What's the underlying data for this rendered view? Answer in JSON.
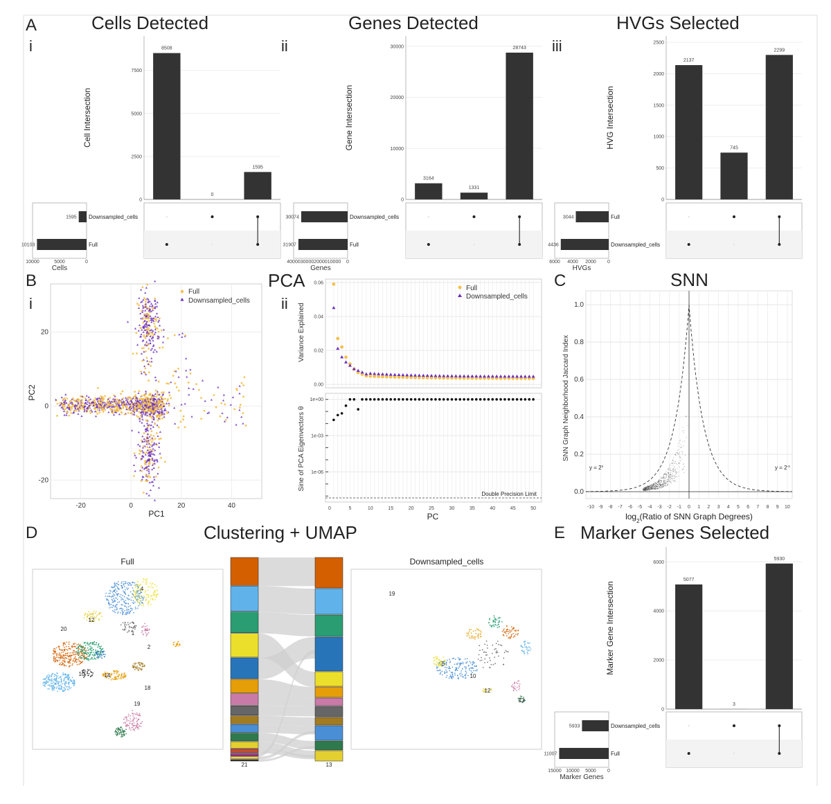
{
  "panels": {
    "A": {
      "label": "A",
      "title_i": "Cells Detected",
      "title_ii": "Genes Detected",
      "title_iii": "HVGs Selected",
      "sub_i": "i",
      "sub_ii": "ii",
      "sub_iii": "iii"
    },
    "B": {
      "label": "B",
      "sub_i": "i",
      "sub_ii": "ii",
      "title_pca": "PCA"
    },
    "C": {
      "label": "C",
      "title": "SNN"
    },
    "D": {
      "label": "D",
      "title": "Clustering + UMAP",
      "left_title": "Full",
      "right_title": "Downsampled_cells"
    },
    "E": {
      "label": "E",
      "title": "Marker Genes Selected"
    }
  },
  "chart_data": [
    {
      "id": "cells",
      "type": "upset",
      "ylabel": "Cell Intersection",
      "setlabel": "Cells",
      "ylim": [
        0,
        9500
      ],
      "yticks": [
        "0",
        "2500",
        "5000",
        "7500"
      ],
      "ytick_values": [
        0,
        2500,
        5000,
        7500
      ],
      "bars": [
        {
          "value": 8508,
          "label": "8508"
        },
        {
          "value": 0,
          "label": "0"
        },
        {
          "value": 1595,
          "label": "1595"
        }
      ],
      "sets": [
        {
          "name": "Downsampled_cells",
          "size": 1595,
          "label": "1595"
        },
        {
          "name": "Full",
          "size": 10103,
          "label": "10103"
        }
      ],
      "setmax": 11000,
      "setticks": [
        "10000",
        "5000",
        "0"
      ],
      "matrix": [
        [
          0,
          1
        ],
        [
          1,
          0
        ],
        [
          1,
          1
        ]
      ]
    },
    {
      "id": "genes",
      "type": "upset",
      "ylabel": "Gene Intersection",
      "setlabel": "Genes",
      "ylim": [
        0,
        32000
      ],
      "yticks": [
        "0",
        "10000",
        "20000",
        "30000"
      ],
      "ytick_values": [
        0,
        10000,
        20000,
        30000
      ],
      "bars": [
        {
          "value": 3164,
          "label": "3164"
        },
        {
          "value": 1331,
          "label": "1331"
        },
        {
          "value": 28743,
          "label": "28743"
        }
      ],
      "sets": [
        {
          "name": "Downsampled_cells",
          "size": 30074,
          "label": "30074"
        },
        {
          "name": "Full",
          "size": 31907,
          "label": "31907"
        }
      ],
      "setmax": 35000,
      "setticks": [
        "40000",
        "30000",
        "20000",
        "10000",
        "0"
      ],
      "matrix": [
        [
          0,
          1
        ],
        [
          1,
          0
        ],
        [
          1,
          1
        ]
      ]
    },
    {
      "id": "hvgs",
      "type": "upset",
      "ylabel": "HVG Intersection",
      "setlabel": "HVGs",
      "ylim": [
        0,
        2600
      ],
      "yticks": [
        "0",
        "500",
        "1000",
        "1500",
        "2000",
        "2500"
      ],
      "ytick_values": [
        0,
        500,
        1000,
        1500,
        2000,
        2500
      ],
      "bars": [
        {
          "value": 2137,
          "label": "2137"
        },
        {
          "value": 745,
          "label": "745"
        },
        {
          "value": 2299,
          "label": "2299"
        }
      ],
      "sets": [
        {
          "name": "Full",
          "size": 3044,
          "label": "3044"
        },
        {
          "name": "Downsampled_cells",
          "size": 4436,
          "label": "4436"
        }
      ],
      "setmax": 5000,
      "setticks": [
        "6000",
        "4000",
        "2000",
        "0"
      ],
      "matrix": [
        [
          0,
          1
        ],
        [
          1,
          0
        ],
        [
          1,
          1
        ]
      ]
    },
    {
      "id": "pca_scatter",
      "type": "scatter",
      "xlabel": "PC1",
      "ylabel": "PC2",
      "xlim": [
        -32,
        52
      ],
      "ylim": [
        -25,
        33
      ],
      "xticks": [
        "-20",
        "0",
        "20",
        "40"
      ],
      "xtick_values": [
        -20,
        0,
        20,
        40
      ],
      "yticks": [
        "-20",
        "0",
        "20"
      ],
      "ytick_values": [
        -20,
        0,
        20
      ],
      "legend": [
        {
          "name": "Full",
          "color": "#f3c04a"
        },
        {
          "name": "Downsampled_cells",
          "color": "#6a2fbf"
        }
      ]
    },
    {
      "id": "variance",
      "type": "scatter",
      "xlabel": "PC",
      "ylabel": "Variance Explained",
      "xlim": [
        0,
        51
      ],
      "ylim": [
        -0.002,
        0.062
      ],
      "yticks": [
        "0.00",
        "0.02",
        "0.04",
        "0.06"
      ],
      "ytick_values": [
        0,
        0.02,
        0.04,
        0.06
      ],
      "xticks": [
        "0",
        "5",
        "10",
        "15",
        "20",
        "25",
        "30",
        "35",
        "40",
        "45",
        "50"
      ],
      "xtick_values": [
        0,
        5,
        10,
        15,
        20,
        25,
        30,
        35,
        40,
        45,
        50
      ],
      "legend": [
        {
          "name": "Full",
          "color": "#f3c04a"
        },
        {
          "name": "Downsampled_cells",
          "color": "#6a2fbf"
        }
      ],
      "series": [
        {
          "name": "Full",
          "values": [
            0.059,
            0.027,
            0.022,
            0.016,
            0.012,
            0.009,
            0.007,
            0.006,
            0.005
          ]
        },
        {
          "name": "Downsampled_cells",
          "values": [
            0.045,
            0.021,
            0.016,
            0.013,
            0.011,
            0.009,
            0.008,
            0.007,
            0.006
          ]
        }
      ]
    },
    {
      "id": "sine",
      "type": "scatter",
      "xlabel": "PC",
      "ylabel": "Sine of PCA Eigenvectors θ",
      "yticks": [
        "1e+00",
        "1e-03",
        "1e-06"
      ],
      "annotation": "Double Precision Limit",
      "values_first": [
        0.02,
        0.05,
        0.07,
        0.3,
        1,
        1,
        0.15
      ]
    },
    {
      "id": "snn",
      "type": "scatter",
      "xlabel_pre": "log",
      "xlabel_sub": "2",
      "xlabel_post": "(Ratio of SNN Graph Degrees)",
      "ylabel": "SNN Graph Neighborhood Jaccard Index",
      "xlim": [
        -10.5,
        10.5
      ],
      "ylim": [
        0,
        1
      ],
      "xticks": [
        "-10",
        "-9",
        "-8",
        "-7",
        "-6",
        "-5",
        "-4",
        "-3",
        "-2",
        "-1",
        "0",
        "1",
        "2",
        "3",
        "4",
        "5",
        "6",
        "7",
        "8",
        "9",
        "10"
      ],
      "yticks": [
        "0.0",
        "0.2",
        "0.4",
        "0.6",
        "0.8",
        "1.0"
      ],
      "ytick_values": [
        0,
        0.2,
        0.4,
        0.6,
        0.8,
        1.0
      ],
      "left_label": "y = 2",
      "left_sup": "x",
      "right_label": "y = 2",
      "right_sup": "-x"
    },
    {
      "id": "umap",
      "type": "scatter",
      "left_cluster_labels": [
        "20",
        "12",
        "4",
        "1",
        "2",
        "10",
        "14",
        "18",
        "19"
      ],
      "right_cluster_labels": [
        "19",
        "5",
        "10",
        "12",
        "13"
      ],
      "sankey_left_label": "21",
      "sankey_right_label": "13",
      "left_colors": [
        "#d35f00",
        "#5fb3ea",
        "#2a9d72",
        "#ecdf2b",
        "#2874b9",
        "#e59d08",
        "#c97aa6",
        "#666666",
        "#a17b22",
        "#4a8fd5",
        "#2e7a4d",
        "#e3cf30",
        "#c54d2d",
        "#9b3d82",
        "#ffd23d",
        "#333333"
      ],
      "right_colors": [
        "#d35f00",
        "#5fb3ea",
        "#2a9d72",
        "#2874b9",
        "#ecdf2b",
        "#e59d08",
        "#c97aa6",
        "#666666",
        "#a17b22",
        "#4a8fd5",
        "#2e7a4d",
        "#e3cf30"
      ]
    },
    {
      "id": "markers",
      "type": "upset",
      "ylabel": "Marker Gene Intersection",
      "setlabel": "Marker Genes",
      "ylim": [
        0,
        6600
      ],
      "yticks": [
        "0",
        "2000",
        "4000",
        "6000"
      ],
      "ytick_values": [
        0,
        2000,
        4000,
        6000
      ],
      "bars": [
        {
          "value": 5077,
          "label": "5077"
        },
        {
          "value": 3,
          "label": "3"
        },
        {
          "value": 5930,
          "label": "5930"
        }
      ],
      "sets": [
        {
          "name": "Downsampled_cells",
          "size": 5933,
          "label": "5933"
        },
        {
          "name": "Full",
          "size": 11007,
          "label": "11007"
        }
      ],
      "setmax": 12000,
      "setticks": [
        "15000",
        "10000",
        "5000",
        "0"
      ],
      "matrix": [
        [
          0,
          1
        ],
        [
          1,
          0
        ],
        [
          1,
          1
        ]
      ]
    }
  ]
}
